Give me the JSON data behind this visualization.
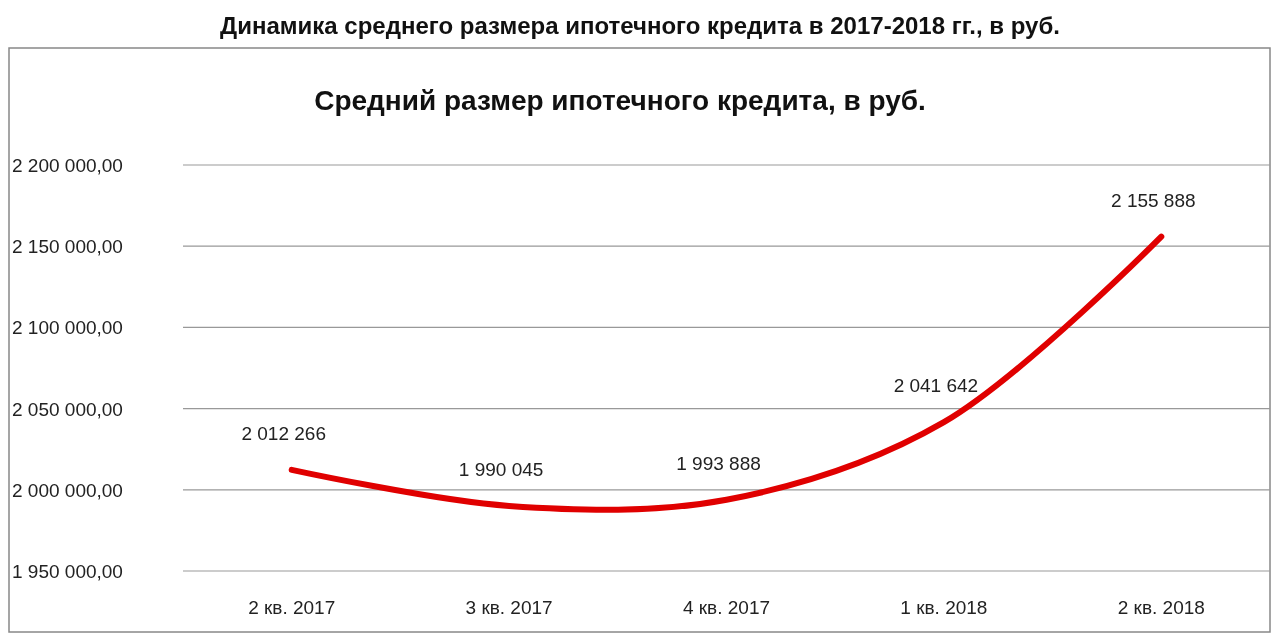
{
  "chart_data": {
    "type": "line",
    "title": "Динамика среднего размера ипотечного кредита в 2017-2018 гг., в руб.",
    "subtitle": "Средний размер ипотечного кредита, в руб.",
    "categories": [
      "2 кв. 2017",
      "3 кв. 2017",
      "4 кв. 2017",
      "1 кв. 2018",
      "2 кв. 2018"
    ],
    "series": [
      {
        "color": "#e00000",
        "values": [
          2012266,
          1990045,
          1993888,
          2041642,
          2155888
        ],
        "value_labels": [
          "2 012 266",
          "1 990 045",
          "1 993 888",
          "2 041 642",
          "2 155 888"
        ]
      }
    ],
    "ylim": [
      1950000,
      2200000
    ],
    "yticks": [
      {
        "value": 1950000,
        "label": "1 950 000,00"
      },
      {
        "value": 2000000,
        "label": "2 000 000,00"
      },
      {
        "value": 2050000,
        "label": "2 050 000,00"
      },
      {
        "value": 2100000,
        "label": "2 100 000,00"
      },
      {
        "value": 2150000,
        "label": "2 150 000,00"
      },
      {
        "value": 2200000,
        "label": "2 200 000,00"
      }
    ],
    "grid": "y",
    "marker": "none",
    "line_style": "solid"
  }
}
